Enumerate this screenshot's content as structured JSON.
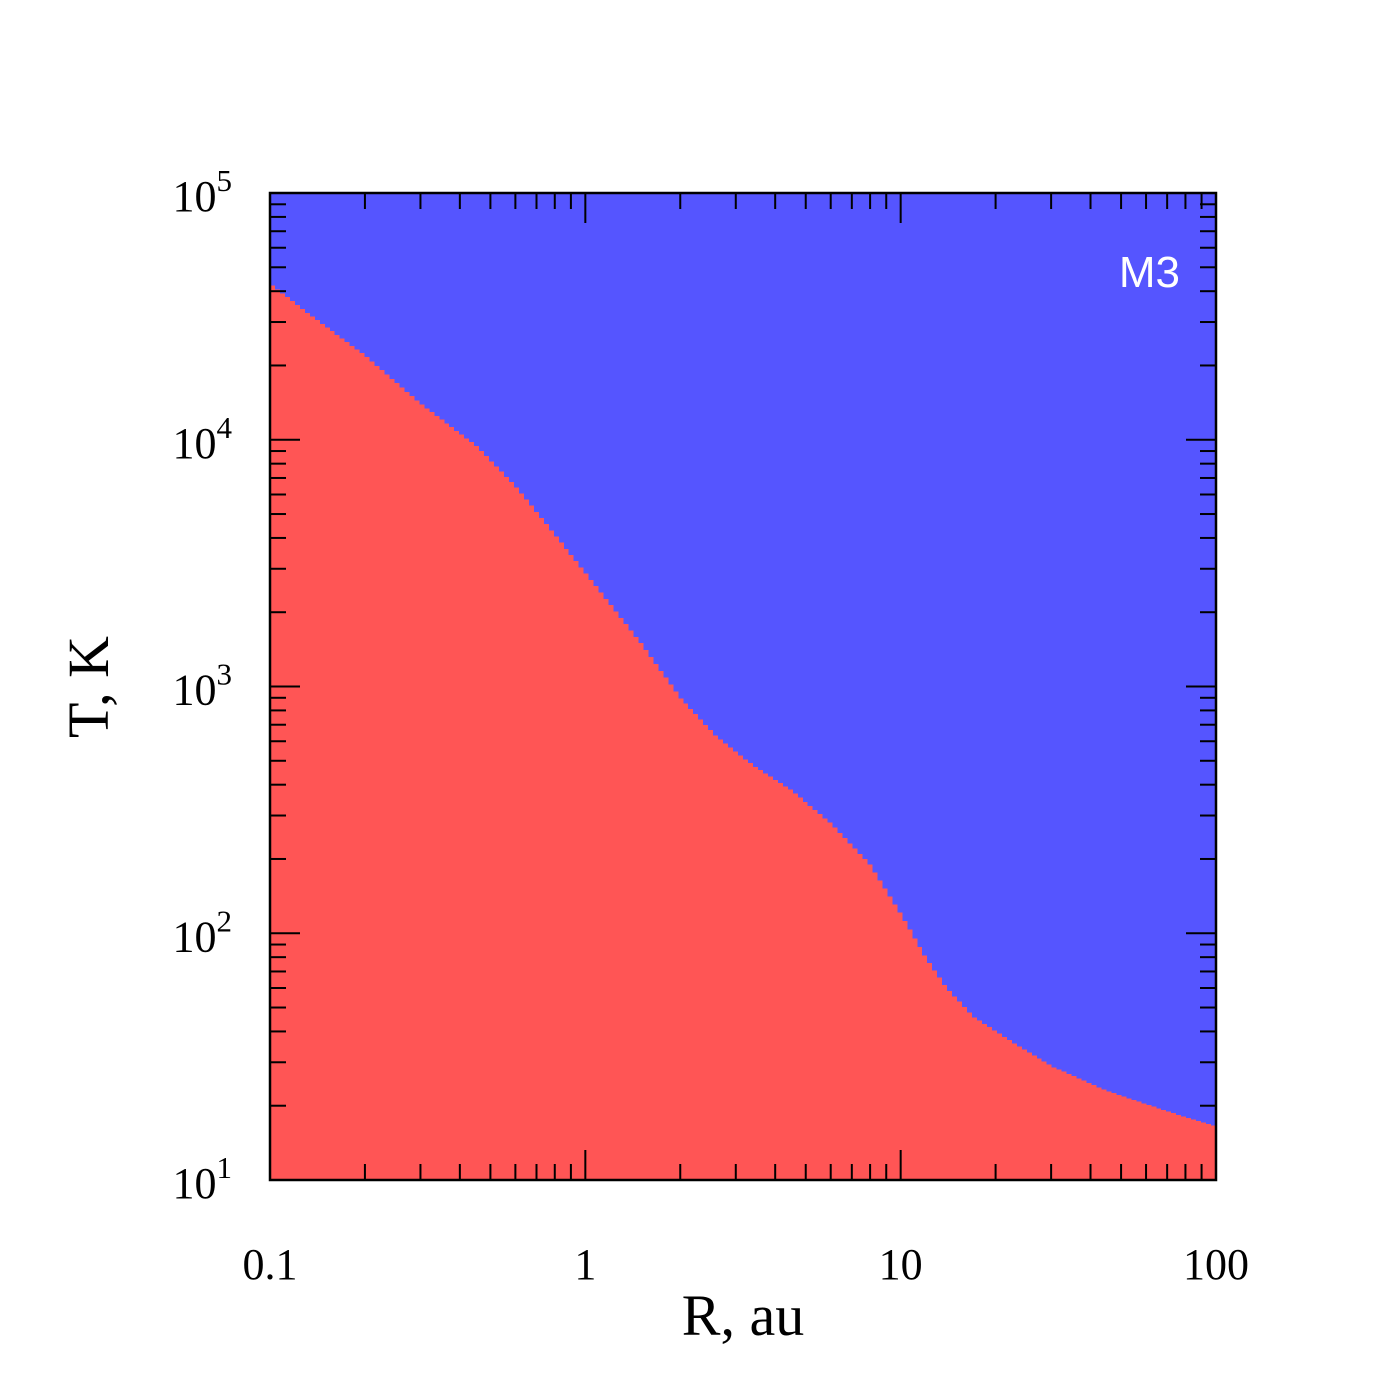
{
  "chart_data": {
    "type": "area",
    "xlabel": "R, au",
    "ylabel": "T, K",
    "xscale": "log",
    "yscale": "log",
    "xlim": [
      0.1,
      100
    ],
    "ylim": [
      10,
      100000
    ],
    "x_ticks": [
      {
        "value": 0.1,
        "label": "0.1"
      },
      {
        "value": 1,
        "label": "1"
      },
      {
        "value": 10,
        "label": "10"
      },
      {
        "value": 100,
        "label": "100"
      }
    ],
    "y_ticks": [
      {
        "value": 10,
        "base": "10",
        "exp": "1"
      },
      {
        "value": 100,
        "base": "10",
        "exp": "2"
      },
      {
        "value": 1000,
        "base": "10",
        "exp": "3"
      },
      {
        "value": 10000,
        "base": "10",
        "exp": "4"
      },
      {
        "value": 100000,
        "base": "10",
        "exp": "5"
      }
    ],
    "annotation": "M3",
    "colors": {
      "below_boundary": "#ff5555",
      "above_boundary": "#5555ff",
      "annotation": "#ffffff"
    },
    "boundary": {
      "x": [
        0.1,
        0.13,
        0.2,
        0.3,
        0.45,
        0.6,
        1.0,
        1.5,
        2.0,
        2.6,
        3.4,
        4.5,
        6.0,
        8.0,
        10.0,
        12.0,
        14.0,
        17.0,
        22.0,
        30.0,
        45.0,
        70.0,
        100.0
      ],
      "y": [
        43000,
        33000,
        22000,
        14000,
        9500,
        6500,
        2900,
        1500,
        900,
        630,
        480,
        380,
        280,
        190,
        120,
        80,
        60,
        46,
        37,
        29,
        23,
        19,
        16.5
      ]
    }
  }
}
